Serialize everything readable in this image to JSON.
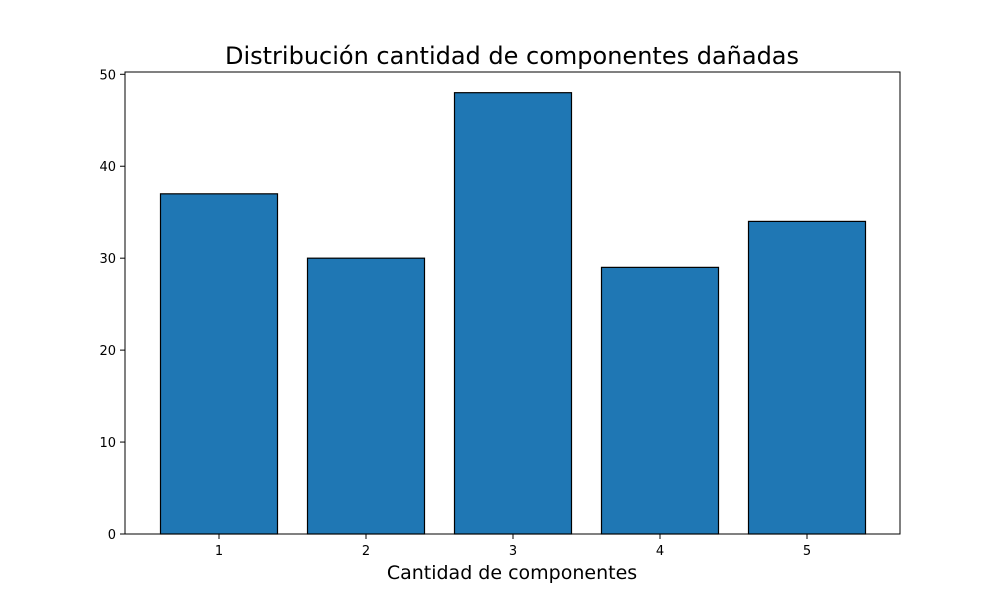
{
  "chart_data": {
    "type": "bar",
    "title": "Distribución cantidad de componentes dañadas",
    "xlabel": "Cantidad de componentes",
    "ylabel": "",
    "categories": [
      "1",
      "2",
      "3",
      "4",
      "5"
    ],
    "values": [
      37,
      30,
      48,
      29,
      34
    ],
    "ylim": [
      0,
      50
    ],
    "yticks": [
      0,
      10,
      20,
      30,
      40,
      50
    ],
    "grid": false,
    "colors": {
      "bar": "#1f77b4",
      "edge": "#000000"
    }
  }
}
